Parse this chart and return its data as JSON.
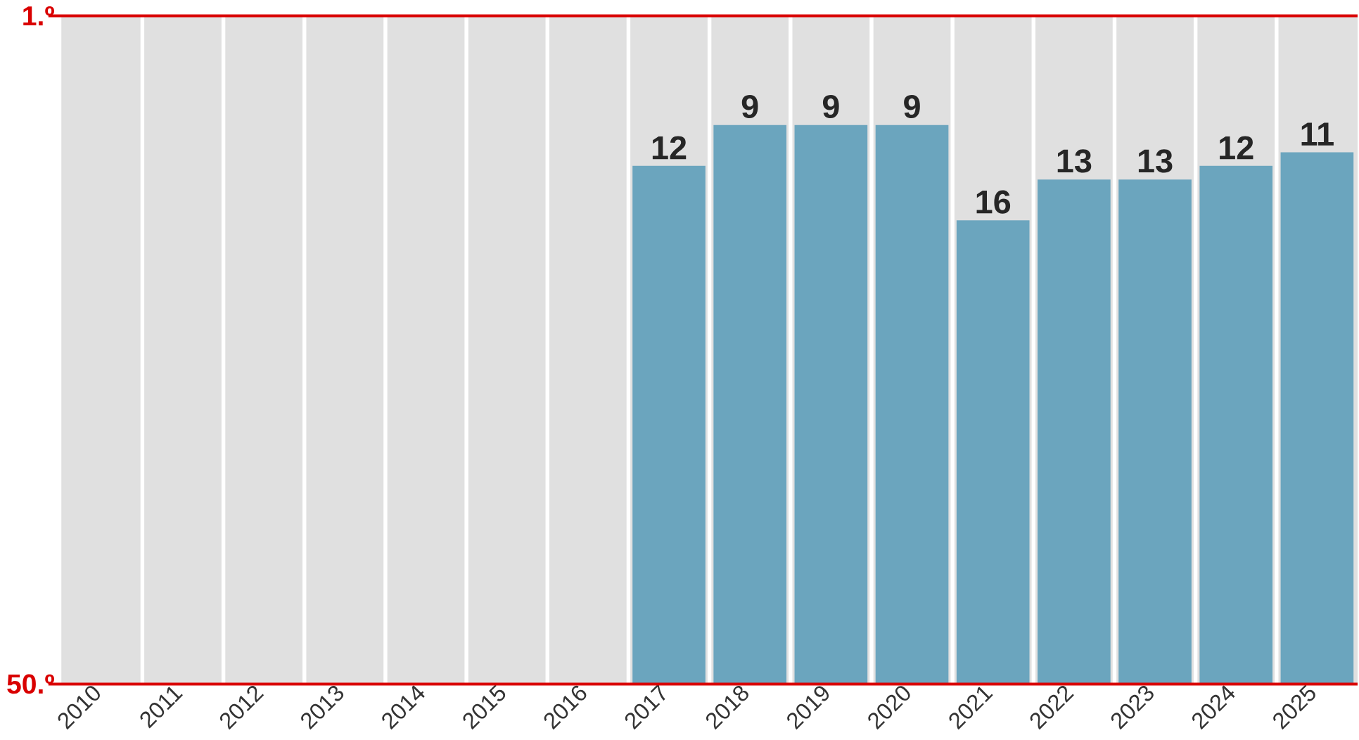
{
  "chart_data": {
    "type": "bar",
    "categories": [
      "2010",
      "2011",
      "2012",
      "2013",
      "2014",
      "2015",
      "2016",
      "2017",
      "2018",
      "2019",
      "2020",
      "2021",
      "2022",
      "2023",
      "2024",
      "2025"
    ],
    "values": [
      null,
      null,
      null,
      null,
      null,
      null,
      null,
      -38,
      -41,
      -41,
      -41,
      -34,
      -37,
      -37,
      -38,
      -39
    ],
    "value_labels": [
      null,
      null,
      null,
      null,
      null,
      null,
      null,
      "12",
      "9",
      "9",
      "9",
      "16",
      "13",
      "13",
      "12",
      "11"
    ],
    "base": [
      null,
      null,
      null,
      null,
      null,
      null,
      null,
      50,
      50,
      50,
      50,
      50,
      50,
      50,
      50,
      50
    ],
    "color": "#6ba5be",
    "ylim": [
      50,
      1
    ],
    "yticks": [
      {
        "value": 1,
        "label": "1.º"
      },
      {
        "value": 50,
        "label": "50.º"
      }
    ],
    "grid": false
  }
}
